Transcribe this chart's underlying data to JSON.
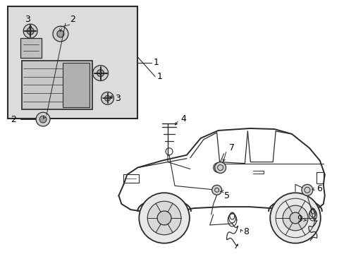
{
  "background_color": "#ffffff",
  "line_color": "#2a2a2a",
  "text_color": "#000000",
  "inset_bg": "#dcdcdc",
  "figsize": [
    4.89,
    3.6
  ],
  "dpi": 100
}
